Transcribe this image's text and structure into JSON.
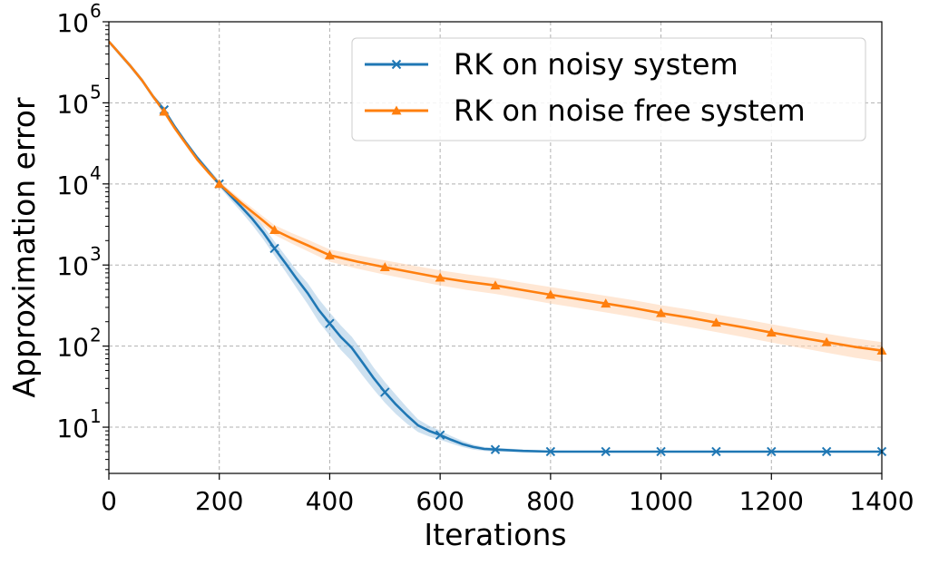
{
  "chart_data": {
    "type": "line",
    "title": "",
    "xlabel": "Iterations",
    "ylabel": "Approximation error",
    "xlim": [
      0,
      1400
    ],
    "ylim_log10": [
      0.43,
      6.0
    ],
    "yscale": "log",
    "grid": true,
    "legend_position": "top-right",
    "x_ticks": [
      {
        "value": 0,
        "label": "0"
      },
      {
        "value": 200,
        "label": "200"
      },
      {
        "value": 400,
        "label": "400"
      },
      {
        "value": 600,
        "label": "600"
      },
      {
        "value": 800,
        "label": "800"
      },
      {
        "value": 1000,
        "label": "1000"
      },
      {
        "value": 1200,
        "label": "1200"
      },
      {
        "value": 1400,
        "label": "1400"
      }
    ],
    "y_ticks": [
      {
        "exp": 1,
        "base": "10",
        "sup": "1"
      },
      {
        "exp": 2,
        "base": "10",
        "sup": "2"
      },
      {
        "exp": 3,
        "base": "10",
        "sup": "3"
      },
      {
        "exp": 4,
        "base": "10",
        "sup": "4"
      },
      {
        "exp": 5,
        "base": "10",
        "sup": "5"
      },
      {
        "exp": 6,
        "base": "10",
        "sup": "6"
      }
    ],
    "series": [
      {
        "name": "RK on noisy system",
        "color": "#1f77b4",
        "band_color": "#a6c8e4",
        "marker": "x",
        "x": [
          0,
          20,
          40,
          60,
          80,
          100,
          120,
          140,
          160,
          180,
          200,
          220,
          240,
          260,
          280,
          300,
          320,
          340,
          360,
          380,
          400,
          420,
          440,
          460,
          480,
          500,
          520,
          540,
          560,
          580,
          600,
          620,
          640,
          660,
          680,
          700,
          750,
          800,
          850,
          900,
          950,
          1000,
          1050,
          1100,
          1150,
          1200,
          1250,
          1300,
          1350,
          1400
        ],
        "values": [
          570000,
          400000,
          280000,
          190000,
          120000,
          82000,
          50000,
          32000,
          21000,
          14500,
          10000,
          7200,
          5200,
          3700,
          2500,
          1600,
          1050,
          680,
          450,
          280,
          190,
          130,
          95,
          62,
          40,
          27,
          19,
          14,
          10.5,
          9,
          8,
          7,
          6.2,
          5.7,
          5.4,
          5.3,
          5.1,
          5.0,
          5.0,
          5.0,
          5.0,
          5.0,
          5.0,
          5.0,
          5.0,
          5.0,
          5.0,
          5.0,
          5.0,
          5.0
        ],
        "band_lower": [
          540000,
          375000,
          262000,
          178000,
          112000,
          76000,
          46500,
          29500,
          19500,
          13300,
          9200,
          6400,
          4500,
          3100,
          2050,
          1300,
          830,
          520,
          330,
          200,
          135,
          90,
          65,
          43,
          29,
          20,
          14.5,
          11,
          8.7,
          7.7,
          7.0,
          6.3,
          5.7,
          5.3,
          5.1,
          5.0,
          4.9,
          4.9,
          4.9,
          4.9,
          4.9,
          4.9,
          4.9,
          4.9,
          4.9,
          4.9,
          4.9,
          4.9,
          4.9,
          4.9
        ],
        "band_upper": [
          600000,
          425000,
          298000,
          202000,
          128000,
          88000,
          53500,
          34500,
          22500,
          15700,
          10800,
          8000,
          6000,
          4400,
          3000,
          1950,
          1300,
          860,
          600,
          380,
          260,
          180,
          130,
          85,
          54,
          36,
          25,
          17.5,
          12.5,
          10.4,
          9.1,
          7.8,
          6.8,
          6.1,
          5.7,
          5.6,
          5.3,
          5.15,
          5.12,
          5.1,
          5.1,
          5.1,
          5.1,
          5.1,
          5.1,
          5.1,
          5.1,
          5.1,
          5.1,
          5.1
        ],
        "marker_x": [
          100,
          200,
          300,
          400,
          500,
          600,
          700,
          800,
          900,
          1000,
          1100,
          1200,
          1300,
          1400
        ]
      },
      {
        "name": "RK on noise free system",
        "color": "#ff7f0e",
        "band_color": "#ffd4b0",
        "marker": "triangle",
        "x": [
          0,
          20,
          40,
          60,
          80,
          100,
          120,
          140,
          160,
          180,
          200,
          220,
          240,
          260,
          280,
          300,
          330,
          360,
          400,
          450,
          500,
          550,
          600,
          650,
          700,
          750,
          800,
          850,
          900,
          950,
          1000,
          1050,
          1100,
          1150,
          1200,
          1250,
          1300,
          1350,
          1400
        ],
        "values": [
          570000,
          400000,
          280000,
          190000,
          120000,
          78000,
          48000,
          31000,
          20000,
          14000,
          10000,
          7600,
          5800,
          4500,
          3500,
          2700,
          2150,
          1750,
          1320,
          1100,
          940,
          810,
          700,
          620,
          560,
          490,
          430,
          380,
          335,
          295,
          255,
          225,
          195,
          170,
          147,
          128,
          112,
          98,
          88
        ],
        "band_lower": [
          545000,
          380000,
          266000,
          180000,
          113000,
          73000,
          45000,
          29000,
          18800,
          13100,
          9300,
          6900,
          5200,
          3950,
          3050,
          2350,
          1850,
          1480,
          1100,
          900,
          760,
          650,
          560,
          490,
          440,
          385,
          335,
          295,
          260,
          228,
          198,
          172,
          149,
          129,
          111,
          96,
          83,
          72,
          64
        ],
        "band_upper": [
          595000,
          420000,
          294000,
          200000,
          127000,
          83000,
          51000,
          33000,
          21200,
          14900,
          10700,
          8300,
          6400,
          5050,
          3950,
          3100,
          2500,
          2050,
          1560,
          1320,
          1140,
          990,
          860,
          765,
          690,
          605,
          535,
          470,
          418,
          368,
          320,
          283,
          246,
          215,
          186,
          162,
          142,
          125,
          112
        ],
        "marker_x": [
          100,
          200,
          300,
          400,
          500,
          600,
          700,
          800,
          900,
          1000,
          1100,
          1200,
          1300,
          1400
        ]
      }
    ]
  }
}
